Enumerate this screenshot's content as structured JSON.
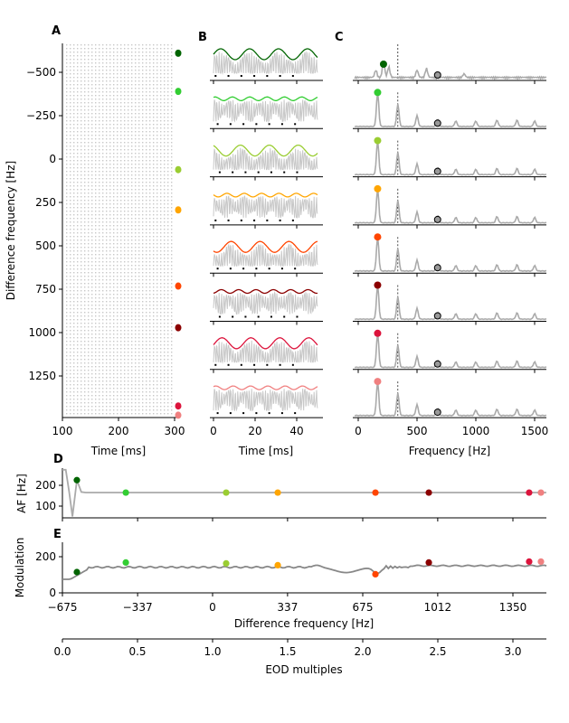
{
  "panels": {
    "a": "A",
    "b": "B",
    "c": "C",
    "d": "D",
    "e": "E"
  },
  "colors": [
    "#006400",
    "#32cd32",
    "#9acd32",
    "#ffa500",
    "#ff4500",
    "#8b0000",
    "#dc143c",
    "#f08080"
  ],
  "chart_data": [
    {
      "id": "A",
      "type": "scatter",
      "xlabel": "Time [ms]",
      "ylabel": "Difference frequency [Hz]",
      "xlim": [
        100,
        300
      ],
      "ylim": [
        1500,
        -675
      ],
      "xticks": [
        "100",
        "200",
        "300"
      ],
      "xtick_values": [
        100,
        200,
        300
      ],
      "yticks": [
        "−500",
        "−250",
        "0",
        "250",
        "500",
        "750",
        "1000",
        "1250"
      ],
      "ytick_values": [
        -500,
        -250,
        0,
        250,
        500,
        750,
        1000,
        1250
      ],
      "markers_df": [
        -610,
        -390,
        61,
        293,
        732,
        972,
        1423,
        1476
      ]
    },
    {
      "id": "B",
      "type": "line",
      "xlabel": "Time [ms]",
      "xlim": [
        0,
        50
      ],
      "xticks": [
        "0",
        "20",
        "40"
      ],
      "xtick_values": [
        0,
        20,
        40
      ],
      "rows": 8
    },
    {
      "id": "C",
      "type": "line",
      "xlabel": "Frequency [Hz]",
      "xlim": [
        -30,
        1600
      ],
      "xticks": [
        "0",
        "500",
        "1000",
        "1500"
      ],
      "xtick_values": [
        0,
        500,
        1000,
        1500
      ],
      "dashed_line_hz": 337,
      "gray_marker_hz": 675,
      "peak_hz": [
        215,
        165,
        165,
        165,
        165,
        165,
        165,
        165
      ]
    },
    {
      "id": "D",
      "type": "line",
      "ylabel": "AF [Hz]",
      "xlim": [
        -675,
        1500
      ],
      "ylim": [
        40,
        280
      ],
      "yticks": [
        "100",
        "200"
      ],
      "ytick_values": [
        100,
        200
      ],
      "x": [
        -675,
        -660,
        -645,
        -630,
        -610,
        -590,
        -570,
        -540,
        1500
      ],
      "y": [
        275,
        275,
        170,
        50,
        225,
        168,
        165,
        165,
        165
      ],
      "points": {
        "x": [
          -610,
          -390,
          61,
          293,
          732,
          972,
          1423,
          1476
        ],
        "y": [
          225,
          165,
          165,
          165,
          165,
          165,
          165,
          165
        ]
      }
    },
    {
      "id": "E",
      "type": "line",
      "ylabel": "Modulation",
      "xlabel": "Difference frequency [Hz]",
      "xlim": [
        -675,
        1500
      ],
      "ylim": [
        0,
        280
      ],
      "yticks": [
        "0",
        "200"
      ],
      "ytick_values": [
        0,
        200
      ],
      "xticks": [
        "−675",
        "−337",
        "0",
        "337",
        "675",
        "1012",
        "1350"
      ],
      "xtick_values": [
        -675,
        -337,
        0,
        337,
        675,
        1012,
        1350
      ],
      "points": {
        "x": [
          -610,
          -390,
          61,
          293,
          732,
          972,
          1423,
          1476
        ],
        "y": [
          115,
          168,
          163,
          153,
          103,
          168,
          173,
          173
        ]
      }
    },
    {
      "id": "EOD",
      "type": "axis",
      "xlabel": "EOD multiples",
      "xlim": [
        0,
        3.2
      ],
      "xticks": [
        "0.0",
        "0.5",
        "1.0",
        "1.5",
        "2.0",
        "2.5",
        "3.0"
      ],
      "xtick_values": [
        0,
        0.5,
        1,
        1.5,
        2,
        2.5,
        3
      ]
    }
  ]
}
